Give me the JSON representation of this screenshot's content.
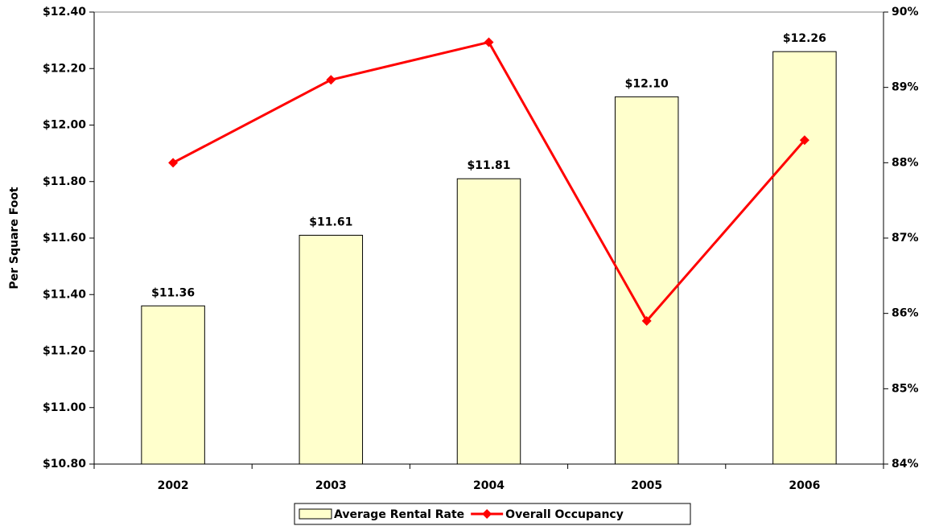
{
  "chart_data": {
    "type": "bar-line",
    "y_label": "Per Square Foot",
    "categories": [
      "2002",
      "2003",
      "2004",
      "2005",
      "2006"
    ],
    "series": [
      {
        "name": "Average Rental Rate",
        "type": "bar",
        "color": "#ffffcc",
        "values": [
          11.36,
          11.61,
          11.81,
          12.1,
          12.26
        ],
        "value_labels": [
          "$11.36",
          "$11.61",
          "$11.81",
          "$12.10",
          "$12.26"
        ]
      },
      {
        "name": "Overall Occupancy",
        "type": "line",
        "color": "#ff0000",
        "axis": "y2",
        "values": [
          88.0,
          89.1,
          89.6,
          85.9,
          88.3
        ]
      }
    ],
    "ylim": [
      10.8,
      12.4
    ],
    "yticks": [
      {
        "value": 10.8,
        "label": "$10.80"
      },
      {
        "value": 11.0,
        "label": "$11.00"
      },
      {
        "value": 11.2,
        "label": "$11.20"
      },
      {
        "value": 11.4,
        "label": "$11.40"
      },
      {
        "value": 11.6,
        "label": "$11.60"
      },
      {
        "value": 11.8,
        "label": "$11.80"
      },
      {
        "value": 12.0,
        "label": "$12.00"
      },
      {
        "value": 12.2,
        "label": "$12.20"
      },
      {
        "value": 12.4,
        "label": "$12.40"
      }
    ],
    "y2lim": [
      84,
      90
    ],
    "y2ticks": [
      {
        "value": 84,
        "label": "84%"
      },
      {
        "value": 85,
        "label": "85%"
      },
      {
        "value": 86,
        "label": "86%"
      },
      {
        "value": 87,
        "label": "87%"
      },
      {
        "value": 88,
        "label": "88%"
      },
      {
        "value": 89,
        "label": "89%"
      },
      {
        "value": 90,
        "label": "90%"
      }
    ],
    "y2_color": "#ff0000",
    "legend": "bottom",
    "grid": false
  }
}
